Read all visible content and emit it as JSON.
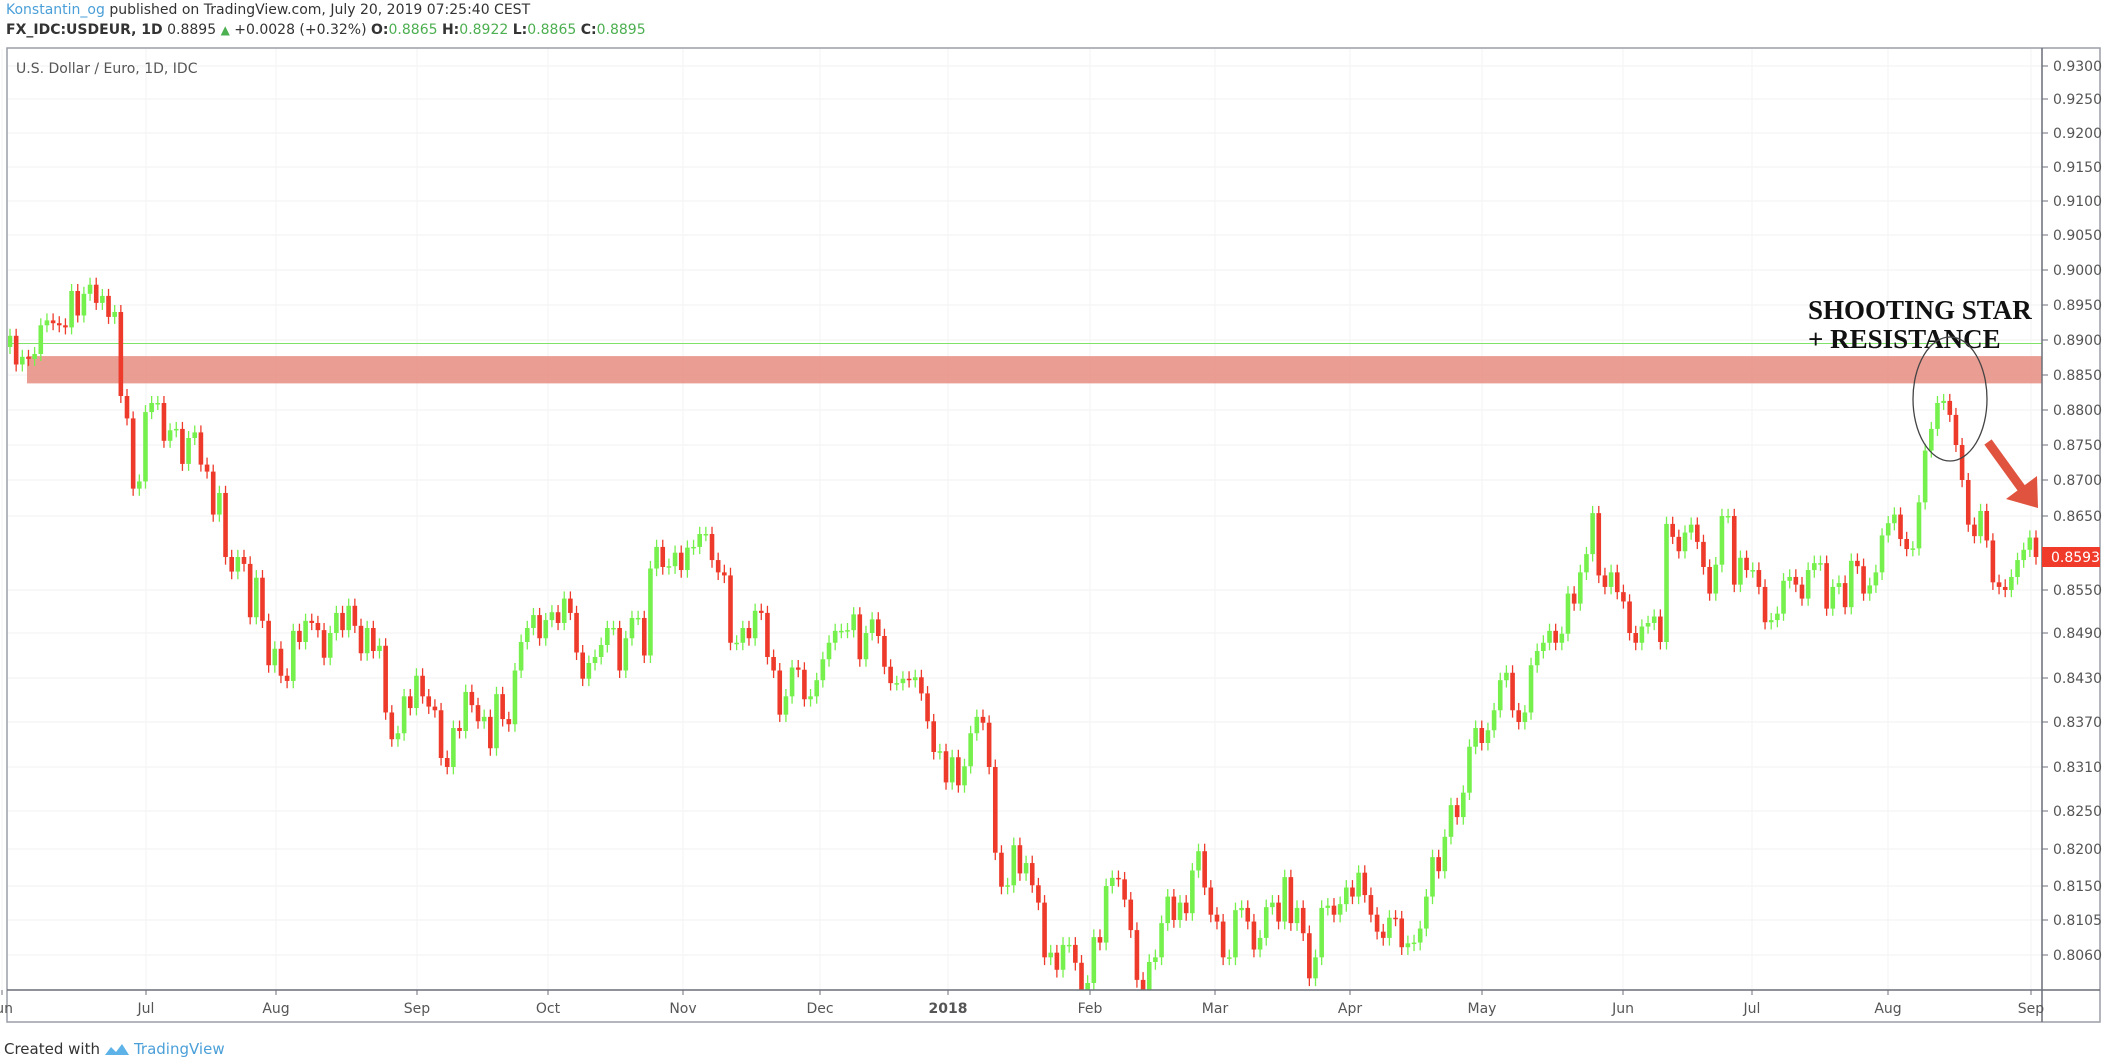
{
  "header": {
    "author": "Konstantin_og",
    "published": "published on TradingView.com, July 20, 2019 07:25:40 CEST",
    "symbol": "FX_IDC:USDEUR, 1D",
    "last": "0.8895",
    "change": "+0.0028 (+0.32%)",
    "o_label": "O:",
    "o": "0.8865",
    "h_label": "H:",
    "h": "0.8922",
    "l_label": "L:",
    "l": "0.8865",
    "c_label": "C:",
    "c": "0.8895",
    "up_icon": "triangle-up"
  },
  "chart_title": "U.S. Dollar / Euro, 1D, IDC",
  "footer": {
    "created_with": "Created with",
    "brand": "TradingView",
    "logo_icon": "tradingview-cloud-logo"
  },
  "colors": {
    "up": "#76f04d",
    "down": "#ee3a2a",
    "resistance_zone": "#e68c80",
    "guide_line": "#7fe36a",
    "badge": "#f03a2a",
    "arrow": "#e0533f"
  },
  "chart_data": {
    "type": "candlestick",
    "title": "U.S. Dollar / Euro, 1D, IDC",
    "y_ticks": [
      "0.9300",
      "0.9250",
      "0.9200",
      "0.9150",
      "0.9100",
      "0.9050",
      "0.9000",
      "0.8950",
      "0.8900",
      "0.8850",
      "0.8800",
      "0.8750",
      "0.8700",
      "0.8650",
      "0.8550",
      "0.8490",
      "0.8430",
      "0.8370",
      "0.8310",
      "0.8250",
      "0.8200",
      "0.8150",
      "0.8105",
      "0.8060"
    ],
    "x_ticks": [
      {
        "label": "Jun",
        "bold": false
      },
      {
        "label": "Jul",
        "bold": false
      },
      {
        "label": "Aug",
        "bold": false
      },
      {
        "label": "Sep",
        "bold": false
      },
      {
        "label": "Oct",
        "bold": false
      },
      {
        "label": "Nov",
        "bold": false
      },
      {
        "label": "Dec",
        "bold": false
      },
      {
        "label": "2018",
        "bold": true
      },
      {
        "label": "Feb",
        "bold": false
      },
      {
        "label": "Mar",
        "bold": false
      },
      {
        "label": "Apr",
        "bold": false
      },
      {
        "label": "May",
        "bold": false
      },
      {
        "label": "Jun",
        "bold": false
      },
      {
        "label": "Jul",
        "bold": false
      },
      {
        "label": "Aug",
        "bold": false
      },
      {
        "label": "Sep",
        "bold": false
      }
    ],
    "last_price": "0.8593",
    "first_open": 0.889,
    "closes": [
      0.8906,
      0.8865,
      0.8876,
      0.8873,
      0.888,
      0.8921,
      0.8928,
      0.8924,
      0.8921,
      0.8918,
      0.897,
      0.8935,
      0.8966,
      0.8979,
      0.8953,
      0.8963,
      0.8933,
      0.894,
      0.882,
      0.8788,
      0.8688,
      0.8698,
      0.8797,
      0.881,
      0.881,
      0.8756,
      0.8771,
      0.8773,
      0.8723,
      0.876,
      0.8768,
      0.8722,
      0.8712,
      0.8652,
      0.8682,
      0.8593,
      0.8574,
      0.8593,
      0.8584,
      0.8512,
      0.8566,
      0.8507,
      0.8447,
      0.8469,
      0.8433,
      0.8426,
      0.8493,
      0.8478,
      0.8507,
      0.8504,
      0.8494,
      0.8457,
      0.849,
      0.8518,
      0.8494,
      0.8528,
      0.85,
      0.8463,
      0.8497,
      0.8466,
      0.8473,
      0.8383,
      0.8347,
      0.8355,
      0.8405,
      0.8389,
      0.8433,
      0.8405,
      0.8391,
      0.8386,
      0.8322,
      0.831,
      0.8362,
      0.8358,
      0.8411,
      0.8393,
      0.8371,
      0.8377,
      0.8335,
      0.8408,
      0.8374,
      0.8367,
      0.844,
      0.8478,
      0.8497,
      0.8515,
      0.8483,
      0.8508,
      0.8519,
      0.8504,
      0.8538,
      0.8518,
      0.8464,
      0.8429,
      0.845,
      0.8458,
      0.8474,
      0.8497,
      0.8497,
      0.844,
      0.8483,
      0.8511,
      0.8511,
      0.846,
      0.8578,
      0.8607,
      0.858,
      0.8581,
      0.8599,
      0.8576,
      0.8606,
      0.8607,
      0.8625,
      0.8625,
      0.8589,
      0.8573,
      0.8569,
      0.8477,
      0.8477,
      0.8497,
      0.8483,
      0.8521,
      0.8518,
      0.8458,
      0.844,
      0.838,
      0.8405,
      0.8444,
      0.8441,
      0.8401,
      0.8405,
      0.8427,
      0.8455,
      0.8477,
      0.8493,
      0.8493,
      0.8494,
      0.8516,
      0.8455,
      0.849,
      0.8509,
      0.8486,
      0.8445,
      0.8423,
      0.8423,
      0.8429,
      0.8427,
      0.8431,
      0.8409,
      0.8371,
      0.833,
      0.8331,
      0.8289,
      0.8323,
      0.8285,
      0.8311,
      0.8355,
      0.8377,
      0.8369,
      0.831,
      0.8195,
      0.8149,
      0.8151,
      0.8205,
      0.8167,
      0.8181,
      0.8151,
      0.8128,
      0.8057,
      0.8063,
      0.8041,
      0.8073,
      0.8073,
      0.805,
      0.8015,
      0.8024,
      0.8083,
      0.8076,
      0.815,
      0.8161,
      0.8159,
      0.8132,
      0.8092,
      0.8028,
      0.8015,
      0.8051,
      0.8057,
      0.8101,
      0.8136,
      0.8105,
      0.8128,
      0.8114,
      0.8171,
      0.8197,
      0.8148,
      0.8112,
      0.8103,
      0.8057,
      0.8057,
      0.8118,
      0.8121,
      0.8103,
      0.8067,
      0.8082,
      0.8122,
      0.8128,
      0.8103,
      0.8162,
      0.8101,
      0.8121,
      0.8088,
      0.803,
      0.8057,
      0.8121,
      0.8124,
      0.8112,
      0.8126,
      0.8148,
      0.8136,
      0.8168,
      0.8138,
      0.8112,
      0.809,
      0.8082,
      0.8108,
      0.8107,
      0.807,
      0.8075,
      0.8076,
      0.8094,
      0.8136,
      0.8189,
      0.817,
      0.8216,
      0.8258,
      0.8242,
      0.8275,
      0.8337,
      0.8362,
      0.8342,
      0.8359,
      0.8386,
      0.8427,
      0.8437,
      0.8386,
      0.837,
      0.8383,
      0.8447,
      0.8466,
      0.8477,
      0.8493,
      0.8477,
      0.8489,
      0.8545,
      0.8531,
      0.8573,
      0.8597,
      0.8654,
      0.8569,
      0.8554,
      0.8573,
      0.8547,
      0.8534,
      0.849,
      0.8477,
      0.8499,
      0.8504,
      0.8513,
      0.8478,
      0.8639,
      0.8621,
      0.8601,
      0.8627,
      0.8638,
      0.8614,
      0.858,
      0.8545,
      0.8583,
      0.865,
      0.865,
      0.8557,
      0.8592,
      0.8576,
      0.8576,
      0.8554,
      0.8505,
      0.8508,
      0.8517,
      0.8562,
      0.8567,
      0.8557,
      0.8538,
      0.8576,
      0.8585,
      0.8585,
      0.8524,
      0.8554,
      0.8559,
      0.8526,
      0.8588,
      0.8581,
      0.8545,
      0.8556,
      0.8573,
      0.8623,
      0.864,
      0.8652,
      0.8618,
      0.8604,
      0.8605,
      0.8669,
      0.8742,
      0.8773,
      0.881,
      0.8813,
      0.8793,
      0.875,
      0.87,
      0.8638,
      0.8622,
      0.8657,
      0.8616,
      0.856,
      0.8554,
      0.855,
      0.8567,
      0.8589,
      0.8603,
      0.862,
      0.8593
    ],
    "horizontal_line": 0.8895,
    "resistance_zone": [
      0.8838,
      0.8877
    ],
    "annotations": [
      "SHOOTING STAR",
      "+ RESISTANCE"
    ],
    "grid": true
  }
}
